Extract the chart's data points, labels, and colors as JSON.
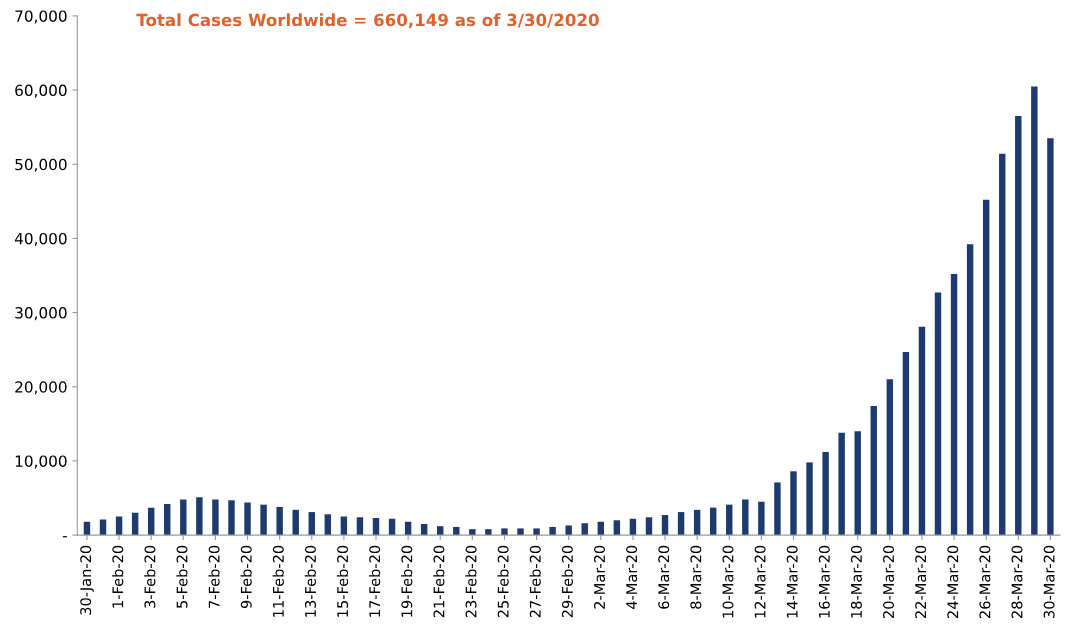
{
  "chart_data": {
    "type": "bar",
    "title": "Total Cases Worldwide = 660,149 as of 3/30/2020",
    "categories": [
      "30-Jan-20",
      null,
      "1-Feb-20",
      null,
      "3-Feb-20",
      null,
      "5-Feb-20",
      null,
      "7-Feb-20",
      null,
      "9-Feb-20",
      null,
      "11-Feb-20",
      null,
      "13-Feb-20",
      null,
      "15-Feb-20",
      null,
      "17-Feb-20",
      null,
      "19-Feb-20",
      null,
      "21-Feb-20",
      null,
      "23-Feb-20",
      null,
      "25-Feb-20",
      null,
      "27-Feb-20",
      null,
      "29-Feb-20",
      null,
      "2-Mar-20",
      null,
      "4-Mar-20",
      null,
      "6-Mar-20",
      null,
      "8-Mar-20",
      null,
      "10-Mar-20",
      null,
      "12-Mar-20",
      null,
      "14-Mar-20",
      null,
      "16-Mar-20",
      null,
      "18-Mar-20",
      null,
      "20-Mar-20",
      null,
      "22-Mar-20",
      null,
      "24-Mar-20",
      null,
      "26-Mar-20",
      null,
      "28-Mar-20",
      null,
      "30-Mar-20"
    ],
    "values": [
      1800,
      2100,
      2500,
      3000,
      3700,
      4200,
      4800,
      5100,
      4800,
      4700,
      4400,
      4100,
      3800,
      3400,
      3100,
      2800,
      2500,
      2400,
      2300,
      2200,
      1800,
      1500,
      1200,
      1100,
      800,
      800,
      900,
      900,
      900,
      1100,
      1300,
      1600,
      1800,
      2000,
      2200,
      2400,
      2700,
      3100,
      3400,
      3700,
      4100,
      4800,
      4500,
      7100,
      8600,
      9800,
      11200,
      13800,
      14000,
      17400,
      21000,
      24700,
      28100,
      32700,
      35200,
      39200,
      45200,
      51400,
      56500,
      60500,
      53500
    ],
    "color": "#1f3a6e",
    "ylim": [
      0,
      70000
    ],
    "yticks": [
      {
        "value": 0,
        "label": "-"
      },
      {
        "value": 10000,
        "label": "10,000"
      },
      {
        "value": 20000,
        "label": "20,000"
      },
      {
        "value": 30000,
        "label": "30,000"
      },
      {
        "value": 40000,
        "label": "40,000"
      },
      {
        "value": 50000,
        "label": "50,000"
      },
      {
        "value": 60000,
        "label": "60,000"
      },
      {
        "value": 70000,
        "label": "70,000"
      }
    ],
    "grid": false
  }
}
